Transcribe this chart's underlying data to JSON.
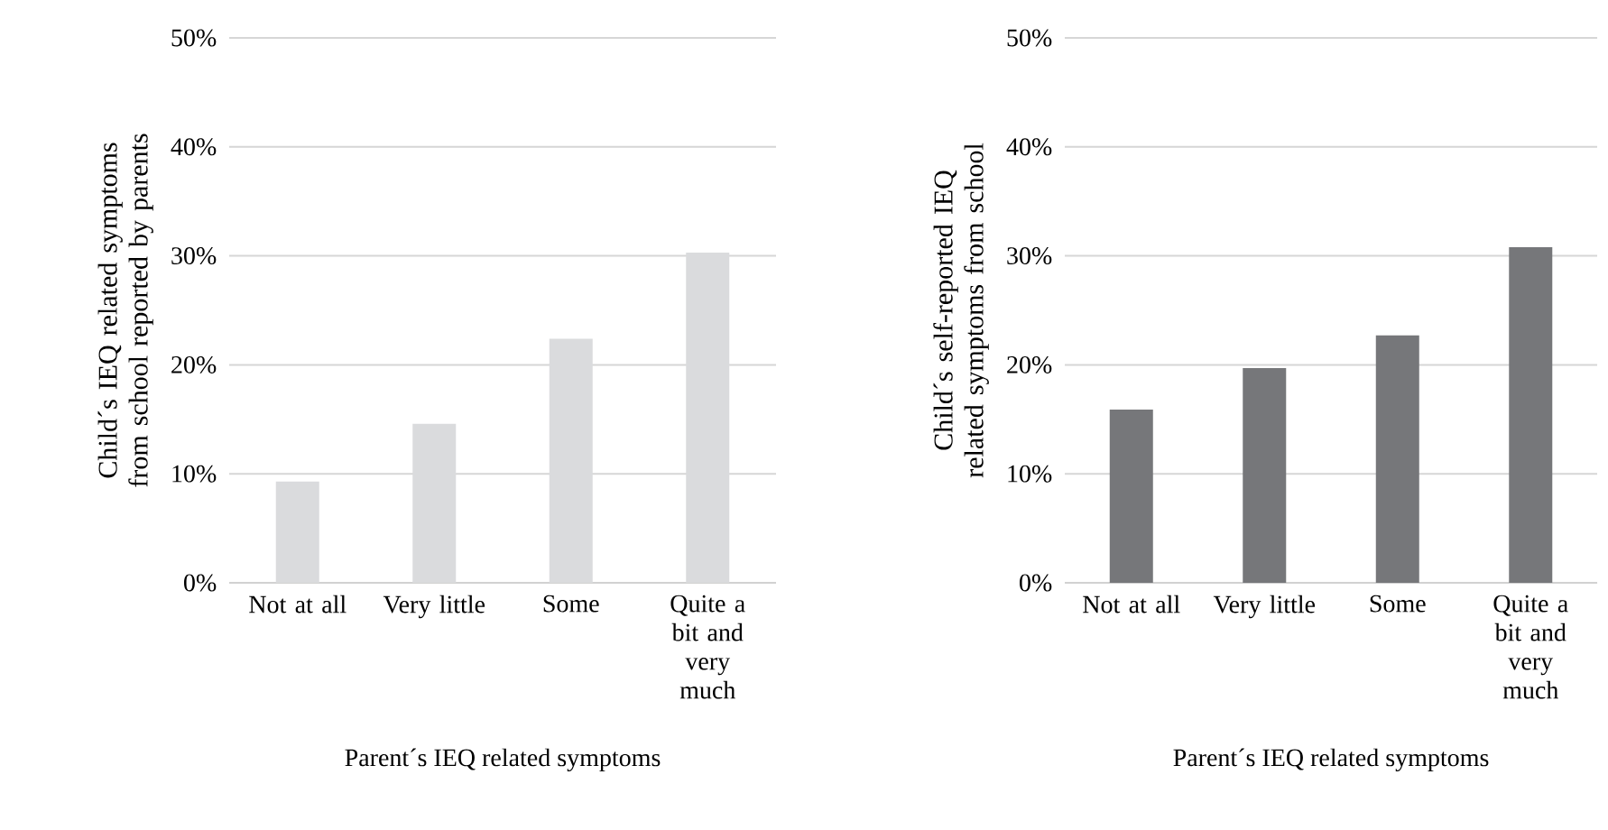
{
  "chart_data": [
    {
      "type": "bar",
      "categories": [
        "Not at all",
        "Very little",
        "Some",
        "Quite a bit and very much"
      ],
      "values": [
        9.3,
        14.6,
        22.4,
        30.3
      ],
      "color": "#dadbdd",
      "xlabel": "Parent´s IEQ related symptoms",
      "ylabel": "Child´s IEQ related symptoms from school reported by parents",
      "ylim": [
        0,
        50
      ],
      "yticks": [
        {
          "value": 0,
          "label": "0%"
        },
        {
          "value": 10,
          "label": "10%"
        },
        {
          "value": 20,
          "label": "20%"
        },
        {
          "value": 30,
          "label": "30%"
        },
        {
          "value": 40,
          "label": "40%"
        },
        {
          "value": 50,
          "label": "50%"
        }
      ],
      "grid": "y"
    },
    {
      "type": "bar",
      "categories": [
        "Not at all",
        "Very little",
        "Some",
        "Quite a bit and very much"
      ],
      "values": [
        15.9,
        19.7,
        22.7,
        30.8
      ],
      "color": "#76777a",
      "xlabel": "Parent´s IEQ related symptoms",
      "ylabel": "Child´s self-reported IEQ related symptoms from school",
      "ylim": [
        0,
        50
      ],
      "yticks": [
        {
          "value": 0,
          "label": "0%"
        },
        {
          "value": 10,
          "label": "10%"
        },
        {
          "value": 20,
          "label": "20%"
        },
        {
          "value": 30,
          "label": "30%"
        },
        {
          "value": 40,
          "label": "40%"
        },
        {
          "value": 50,
          "label": "50%"
        }
      ],
      "grid": "y"
    }
  ]
}
